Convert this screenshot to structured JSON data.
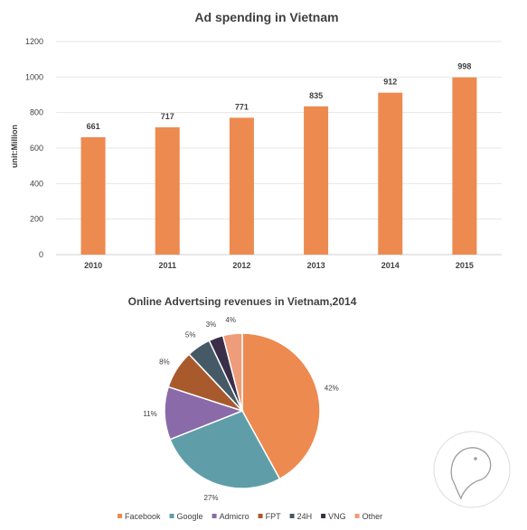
{
  "chart_data": [
    {
      "type": "bar",
      "title": "Ad spending in Vietnam",
      "ylabel": "unit:Million",
      "xlabel": "",
      "categories": [
        "2010",
        "2011",
        "2012",
        "2013",
        "2014",
        "2015"
      ],
      "values": [
        661,
        717,
        771,
        835,
        912,
        998
      ],
      "data_labels": [
        "661",
        "717",
        "771",
        "835",
        "912",
        "998"
      ],
      "ylim": [
        0,
        1200
      ],
      "yticks": [
        "0",
        "200",
        "400",
        "600",
        "800",
        "1000",
        "1200"
      ],
      "ytick_values": [
        0,
        200,
        400,
        600,
        800,
        1000,
        1200
      ],
      "grid": true,
      "bar_color": "#ed8a50"
    },
    {
      "type": "pie",
      "title": "Online Advertsing revenues in Vietnam,2014",
      "slices": [
        {
          "name": "Facebook",
          "value": 42,
          "label": "42%",
          "color": "#ed8a50"
        },
        {
          "name": "Google",
          "value": 27,
          "label": "27%",
          "color": "#5f9ea8"
        },
        {
          "name": "Admicro",
          "value": 11,
          "label": "11%",
          "color": "#8a6aa8"
        },
        {
          "name": "FPT",
          "value": 8,
          "label": "8%",
          "color": "#a85a2c"
        },
        {
          "name": "24H",
          "value": 5,
          "label": "5%",
          "color": "#455a66"
        },
        {
          "name": "VNG",
          "value": 3,
          "label": "3%",
          "color": "#3b2e48"
        },
        {
          "name": "Other",
          "value": 4,
          "label": "4%",
          "color": "#ee9c7a"
        }
      ],
      "legend_position": "bottom"
    }
  ]
}
